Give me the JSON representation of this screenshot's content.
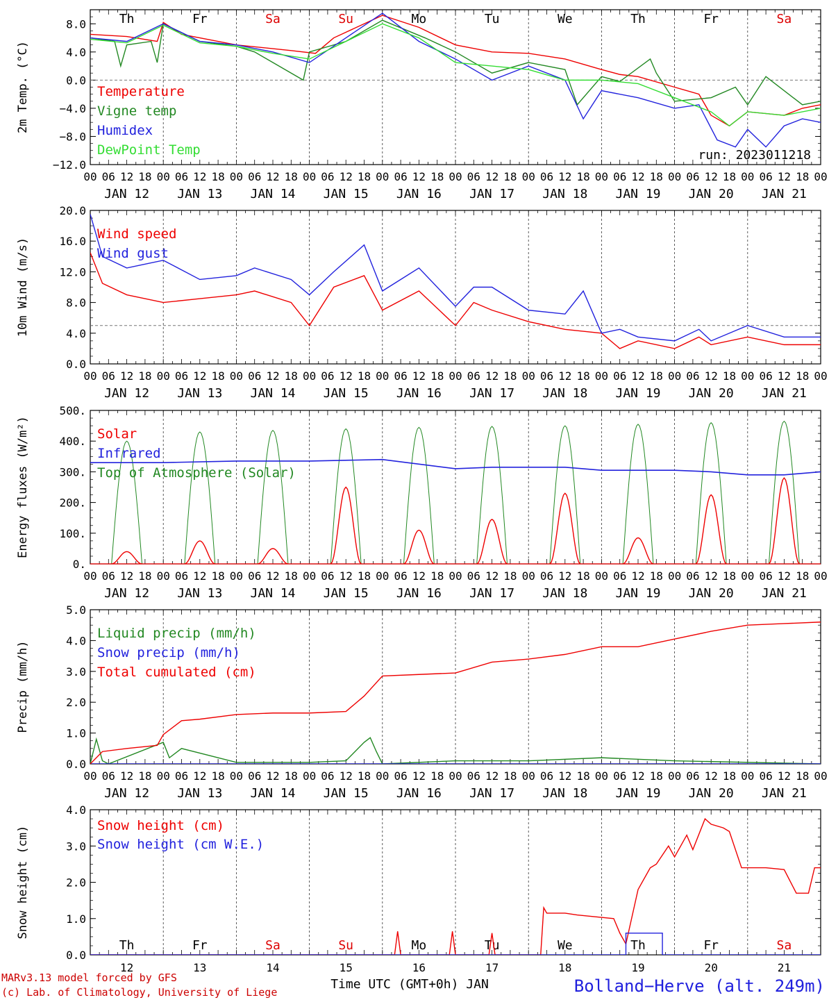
{
  "days_top": [
    {
      "label": "Th",
      "color": "#000000"
    },
    {
      "label": "Fr",
      "color": "#000000"
    },
    {
      "label": "Sa",
      "color": "#dd0000"
    },
    {
      "label": "Su",
      "color": "#dd0000"
    },
    {
      "label": "Mo",
      "color": "#000000"
    },
    {
      "label": "Tu",
      "color": "#000000"
    },
    {
      "label": "We",
      "color": "#000000"
    },
    {
      "label": "Th",
      "color": "#000000"
    },
    {
      "label": "Fr",
      "color": "#000000"
    },
    {
      "label": "Sa",
      "color": "#dd0000"
    }
  ],
  "date_labels": [
    "JAN 12",
    "JAN 13",
    "JAN 14",
    "JAN 15",
    "JAN 16",
    "JAN 17",
    "JAN 18",
    "JAN 19",
    "JAN 20",
    "JAN 21"
  ],
  "hour_labels": [
    "00",
    "06",
    "12",
    "18"
  ],
  "bottom_days": [
    {
      "label": "Th",
      "color": "#000000"
    },
    {
      "label": "Fr",
      "color": "#000000"
    },
    {
      "label": "Sa",
      "color": "#dd0000"
    },
    {
      "label": "Su",
      "color": "#dd0000"
    },
    {
      "label": "Mo",
      "color": "#000000"
    },
    {
      "label": "Tu",
      "color": "#000000"
    },
    {
      "label": "We",
      "color": "#000000"
    },
    {
      "label": "Th",
      "color": "#000000"
    },
    {
      "label": "Fr",
      "color": "#000000"
    },
    {
      "label": "Sa",
      "color": "#dd0000"
    }
  ],
  "bottom_dates": [
    "12",
    "13",
    "14",
    "15",
    "16",
    "17",
    "18",
    "19",
    "20",
    "21"
  ],
  "footer": {
    "model": "MARv3.13 model forced by GFS",
    "copyright": "(c) Lab. of Climatology, University of Liege",
    "xlabel": "Time UTC (GMT+0h) JAN",
    "station": "Bolland−Herve (alt. 249m)"
  },
  "chart_data": [
    {
      "id": "temp",
      "type": "line",
      "ylabel": "2m Temp. (°C)",
      "ylim": [
        -12,
        10
      ],
      "yticks": [
        "8.0",
        "4.0",
        "0.0",
        "−4.0",
        "−8.0",
        "−12.0"
      ],
      "ytick_values": [
        8,
        4,
        0,
        -4,
        -8,
        -12
      ],
      "xlim_hours": [
        0,
        240
      ],
      "reference_line": 0,
      "run_label": "run: 2023011218",
      "series": [
        {
          "name": "Temperature",
          "color": "#ee0000",
          "x": [
            0,
            12,
            22,
            24,
            30,
            48,
            66,
            74,
            80,
            96,
            108,
            120,
            132,
            144,
            156,
            168,
            174,
            180,
            192,
            200,
            204,
            210,
            216,
            228,
            234,
            240
          ],
          "y": [
            6.5,
            6.2,
            5.5,
            8.2,
            6.5,
            5.0,
            4.2,
            3.8,
            6.0,
            9.2,
            7.5,
            5.0,
            4.0,
            3.8,
            3.0,
            1.5,
            0.8,
            0.5,
            -1.0,
            -2.0,
            -5.0,
            -6.5,
            -4.5,
            -5.0,
            -4.0,
            -3.5
          ]
        },
        {
          "name": "Vigne temp",
          "color": "#228822",
          "x": [
            0,
            8,
            10,
            12,
            20,
            22,
            24,
            36,
            48,
            54,
            60,
            70,
            72,
            84,
            96,
            110,
            120,
            132,
            144,
            156,
            160,
            168,
            174,
            184,
            186,
            192,
            204,
            212,
            216,
            222,
            234,
            240
          ],
          "y": [
            6.0,
            5.5,
            2.0,
            5.0,
            5.5,
            2.5,
            8.0,
            5.5,
            4.8,
            4.0,
            2.5,
            0.0,
            4.0,
            5.5,
            8.5,
            6.0,
            4.0,
            1.0,
            2.5,
            1.5,
            -3.5,
            0.5,
            -0.2,
            3.0,
            1.0,
            -3.0,
            -2.5,
            -1.0,
            -3.5,
            0.5,
            -3.5,
            -3.0
          ]
        },
        {
          "name": "Humidex",
          "color": "#2222dd",
          "x": [
            0,
            12,
            24,
            36,
            48,
            60,
            72,
            84,
            96,
            108,
            120,
            132,
            144,
            156,
            162,
            168,
            180,
            192,
            200,
            206,
            212,
            216,
            222,
            228,
            234,
            240
          ],
          "y": [
            6.0,
            5.5,
            8.0,
            5.5,
            5.0,
            4.0,
            2.5,
            6.0,
            9.5,
            5.5,
            3.0,
            0.0,
            2.0,
            0.0,
            -5.5,
            -1.5,
            -2.5,
            -4.0,
            -3.5,
            -8.5,
            -9.5,
            -7.0,
            -9.5,
            -6.5,
            -5.5,
            -6.0
          ]
        },
        {
          "name": "DewPoint Temp",
          "color": "#33dd33",
          "x": [
            0,
            12,
            24,
            36,
            48,
            60,
            72,
            84,
            96,
            108,
            120,
            132,
            144,
            156,
            168,
            180,
            192,
            204,
            210,
            216,
            228,
            240
          ],
          "y": [
            5.8,
            5.3,
            7.8,
            5.3,
            4.8,
            3.8,
            3.0,
            5.5,
            8.0,
            6.0,
            2.5,
            2.0,
            1.5,
            0.0,
            0.0,
            -0.5,
            -2.5,
            -4.5,
            -6.5,
            -4.5,
            -5.0,
            -4.0
          ]
        }
      ]
    },
    {
      "id": "wind",
      "type": "line",
      "ylabel": "10m Wind (m/s)",
      "ylim": [
        0,
        20
      ],
      "yticks": [
        "20.0",
        "16.0",
        "12.0",
        "8.0",
        "4.0",
        "0.0"
      ],
      "ytick_values": [
        20,
        16,
        12,
        8,
        4,
        0
      ],
      "xlim_hours": [
        0,
        240
      ],
      "reference_line": 5,
      "series": [
        {
          "name": "Wind speed",
          "color": "#ee0000",
          "x": [
            0,
            4,
            12,
            24,
            36,
            48,
            54,
            66,
            72,
            80,
            90,
            96,
            108,
            120,
            126,
            132,
            144,
            156,
            168,
            174,
            180,
            192,
            200,
            204,
            216,
            228,
            240
          ],
          "y": [
            14.5,
            10.5,
            9.0,
            8.0,
            8.5,
            9.0,
            9.5,
            8.0,
            5.0,
            10.0,
            11.5,
            7.0,
            9.5,
            5.0,
            8.0,
            7.0,
            5.5,
            4.5,
            4.0,
            2.0,
            3.0,
            2.0,
            3.5,
            2.5,
            3.5,
            2.5,
            2.5
          ]
        },
        {
          "name": "Wind gust",
          "color": "#2222dd",
          "x": [
            0,
            4,
            12,
            24,
            36,
            48,
            54,
            66,
            72,
            80,
            90,
            96,
            108,
            120,
            126,
            132,
            144,
            156,
            162,
            168,
            174,
            180,
            192,
            200,
            204,
            216,
            228,
            240
          ],
          "y": [
            19.5,
            14.0,
            12.5,
            13.5,
            11.0,
            11.5,
            12.5,
            11.0,
            9.0,
            12.0,
            15.5,
            9.5,
            12.5,
            7.5,
            10.0,
            10.0,
            7.0,
            6.5,
            9.5,
            4.0,
            4.5,
            3.5,
            3.0,
            4.5,
            3.0,
            5.0,
            3.5,
            3.5
          ]
        }
      ]
    },
    {
      "id": "energy",
      "type": "line",
      "ylabel": "Energy fluxes (W/m²)",
      "ylim": [
        0,
        500
      ],
      "yticks": [
        "500.",
        "400.",
        "300.",
        "200.",
        "100.",
        "0."
      ],
      "ytick_values": [
        500,
        400,
        300,
        200,
        100,
        0
      ],
      "xlim_hours": [
        0,
        240
      ],
      "solar_peaks": [
        40,
        75,
        50,
        250,
        110,
        145,
        230,
        85,
        225,
        280
      ],
      "toa_peaks": [
        400,
        430,
        435,
        440,
        445,
        448,
        450,
        455,
        460,
        465
      ],
      "series": [
        {
          "name": "Solar",
          "color": "#ee0000"
        },
        {
          "name": "Infrared",
          "color": "#2222dd",
          "x": [
            0,
            24,
            48,
            72,
            96,
            120,
            132,
            144,
            156,
            168,
            180,
            192,
            204,
            216,
            228,
            240
          ],
          "y": [
            330,
            330,
            335,
            335,
            340,
            310,
            315,
            315,
            315,
            305,
            305,
            305,
            300,
            290,
            290,
            300
          ]
        },
        {
          "name": "Top of Atmosphere (Solar)",
          "color": "#228822"
        }
      ]
    },
    {
      "id": "precip",
      "type": "line",
      "ylabel": "Precip (mm/h)",
      "ylim": [
        0,
        5
      ],
      "yticks": [
        "5.0",
        "4.0",
        "3.0",
        "2.0",
        "1.0",
        "0.0"
      ],
      "ytick_values": [
        5,
        4,
        3,
        2,
        1,
        0
      ],
      "xlim_hours": [
        0,
        240
      ],
      "series": [
        {
          "name": "Liquid precip (mm/h)",
          "color": "#228822",
          "x": [
            0,
            2,
            4,
            6,
            24,
            26,
            30,
            48,
            72,
            84,
            90,
            92,
            94,
            96,
            120,
            144,
            168,
            192,
            240
          ],
          "y": [
            0.0,
            0.8,
            0.1,
            0.0,
            0.7,
            0.2,
            0.5,
            0.05,
            0.05,
            0.1,
            0.7,
            0.85,
            0.4,
            0.0,
            0.1,
            0.1,
            0.2,
            0.1,
            0.0
          ]
        },
        {
          "name": "Snow precip (mm/h)",
          "color": "#2222dd",
          "x": [
            0,
            240
          ],
          "y": [
            0.0,
            0.0
          ]
        },
        {
          "name": "Total cumulated (cm)",
          "color": "#ee0000",
          "x": [
            0,
            4,
            12,
            22,
            24,
            30,
            36,
            48,
            60,
            72,
            84,
            90,
            96,
            108,
            120,
            132,
            144,
            156,
            168,
            180,
            192,
            204,
            216,
            228,
            240
          ],
          "y": [
            0.0,
            0.4,
            0.5,
            0.6,
            0.95,
            1.4,
            1.45,
            1.6,
            1.65,
            1.65,
            1.7,
            2.2,
            2.85,
            2.9,
            2.95,
            3.3,
            3.4,
            3.55,
            3.8,
            3.8,
            4.05,
            4.3,
            4.5,
            4.55,
            4.6
          ]
        }
      ]
    },
    {
      "id": "snow",
      "type": "line",
      "ylabel": "Snow height (cm)",
      "ylim": [
        0,
        4
      ],
      "yticks": [
        "4.0",
        "3.0",
        "2.0",
        "1.0",
        "0.0"
      ],
      "ytick_values": [
        4,
        3,
        2,
        1,
        0
      ],
      "xlim_hours": [
        0,
        240
      ],
      "series": [
        {
          "name": "Snow height (cm)",
          "color": "#ee0000",
          "x": [
            0,
            100,
            101,
            102,
            118,
            119,
            120,
            131,
            132,
            133,
            148,
            149,
            150,
            156,
            160,
            172,
            174,
            176,
            180,
            184,
            186,
            190,
            192,
            196,
            198,
            202,
            204,
            208,
            210,
            214,
            216,
            222,
            228,
            232,
            236,
            238,
            240
          ],
          "y": [
            0,
            0,
            0.65,
            0,
            0,
            0.65,
            0,
            0,
            0.6,
            0,
            0,
            1.3,
            1.15,
            1.15,
            1.1,
            1.0,
            0.6,
            0.3,
            1.8,
            2.4,
            2.5,
            3.0,
            2.7,
            3.3,
            2.9,
            3.75,
            3.6,
            3.5,
            3.4,
            2.4,
            2.4,
            2.4,
            2.35,
            1.7,
            1.7,
            2.4,
            2.4
          ]
        },
        {
          "name": "Snow height (cm W.E.)",
          "color": "#2222dd",
          "x": [
            0,
            176,
            176,
            188,
            188,
            240
          ],
          "y": [
            0,
            0,
            0.6,
            0.6,
            0,
            0
          ]
        }
      ]
    }
  ]
}
